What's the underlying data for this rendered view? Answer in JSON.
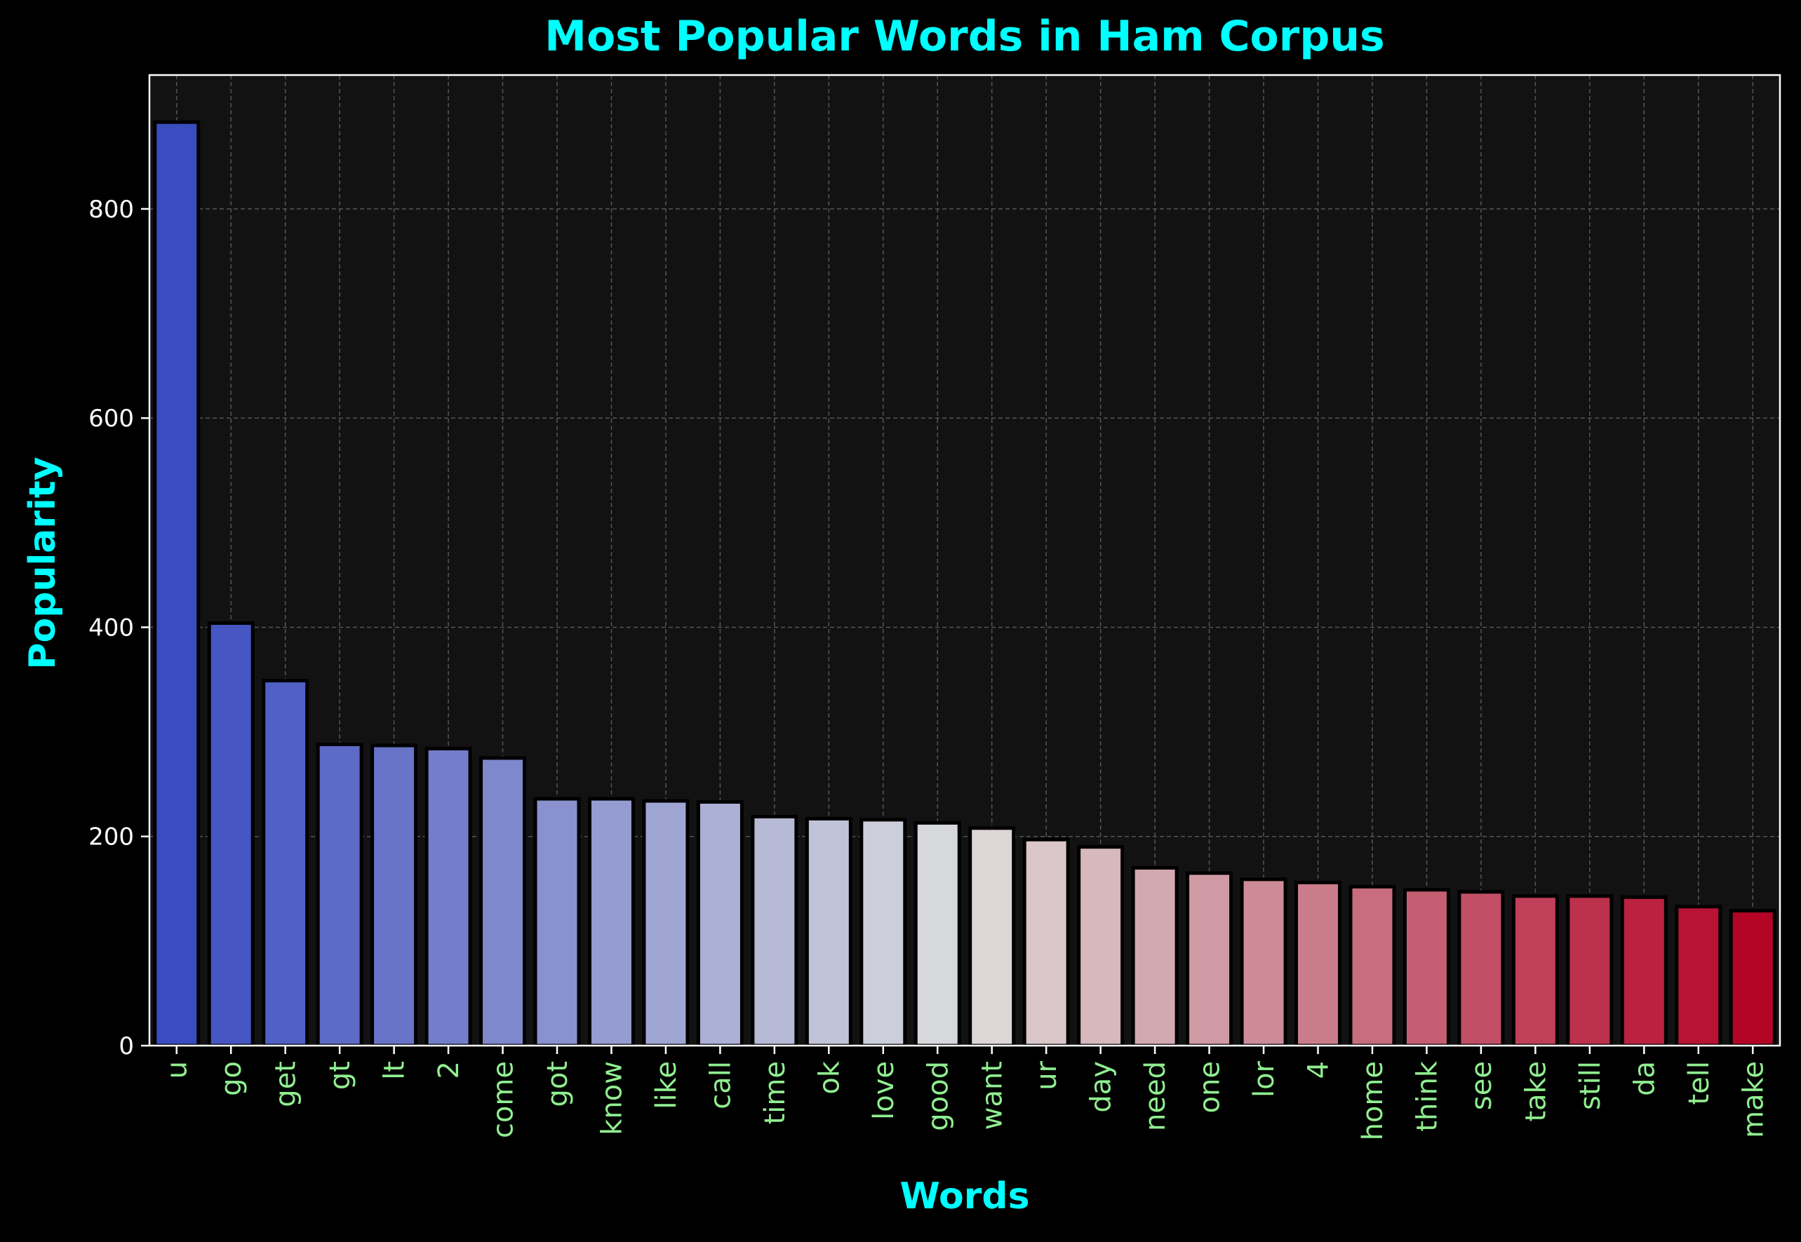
{
  "chart_data": {
    "type": "bar",
    "title": "Most Popular Words in Ham Corpus",
    "xlabel": "Words",
    "ylabel": "Popularity",
    "categories": [
      "u",
      "go",
      "get",
      "gt",
      "lt",
      "2",
      "come",
      "got",
      "know",
      "like",
      "call",
      "time",
      "ok",
      "love",
      "good",
      "want",
      "ur",
      "day",
      "need",
      "one",
      "lor",
      "4",
      "home",
      "think",
      "see",
      "take",
      "still",
      "da",
      "tell",
      "make"
    ],
    "values": [
      883,
      404,
      349,
      288,
      287,
      284,
      275,
      236,
      236,
      234,
      233,
      219,
      217,
      216,
      213,
      208,
      197,
      190,
      170,
      165,
      159,
      156,
      152,
      149,
      147,
      143,
      143,
      142,
      133,
      129
    ],
    "ylim": [
      0,
      928
    ],
    "yticks": [
      0,
      200,
      400,
      600,
      800
    ],
    "grid": true,
    "colors": {
      "title": "#00ffff",
      "axis_label": "#00ffff",
      "x_tick_label": "#90ee90",
      "y_tick_label": "#ffffff",
      "plot_background": "#121212",
      "page_background": "#000000",
      "grid": "#555555",
      "bar_edge": "#000000",
      "axes_edge": "#ffffff",
      "palette_start": "#3b4cc0",
      "palette_mid": "#dddddd",
      "palette_end": "#b40426"
    }
  }
}
